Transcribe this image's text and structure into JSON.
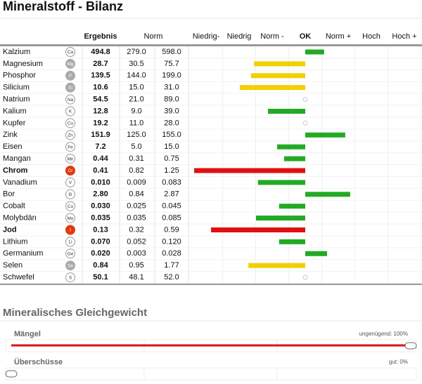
{
  "header": {
    "title": "Mineralstoff - Bilanz"
  },
  "table": {
    "columns": {
      "result": "Ergebnis",
      "norm": "Norm"
    },
    "scale": [
      "Niedrig-",
      "Niedrig",
      "Norm -",
      "OK",
      "Norm +",
      "Hoch",
      "Hoch +"
    ],
    "rows": [
      {
        "name": "Kalzium",
        "symbol": "Ca",
        "result": "494.8",
        "norm_min": "279.0",
        "norm_max": "598.0",
        "deviation": 0.57,
        "color": "#22aa22",
        "badge": "outline",
        "bold": false
      },
      {
        "name": "Magnesium",
        "symbol": "Mg",
        "result": "28.7",
        "norm_min": "30.5",
        "norm_max": "75.7",
        "deviation": -1.55,
        "color": "#f0d000",
        "badge": "gray",
        "bold": false
      },
      {
        "name": "Phosphor",
        "symbol": "P",
        "result": "139.5",
        "norm_min": "144.0",
        "norm_max": "199.0",
        "deviation": -1.64,
        "color": "#f0d000",
        "badge": "gray",
        "bold": false
      },
      {
        "name": "Silicium",
        "symbol": "Si",
        "result": "10.6",
        "norm_min": "15.0",
        "norm_max": "31.0",
        "deviation": -1.98,
        "color": "#f0d000",
        "badge": "gray",
        "bold": false
      },
      {
        "name": "Natrium",
        "symbol": "Na",
        "result": "54.5",
        "norm_min": "21.0",
        "norm_max": "89.0",
        "deviation": 0,
        "color": "#22aa22",
        "badge": "outline",
        "bold": false
      },
      {
        "name": "Kalium",
        "symbol": "K",
        "result": "12.8",
        "norm_min": "9.0",
        "norm_max": "39.0",
        "deviation": -1.13,
        "color": "#22aa22",
        "badge": "outline",
        "bold": false
      },
      {
        "name": "Kupfer",
        "symbol": "Cu",
        "result": "19.2",
        "norm_min": "11.0",
        "norm_max": "28.0",
        "deviation": 0,
        "color": "#22aa22",
        "badge": "outline",
        "bold": false
      },
      {
        "name": "Zink",
        "symbol": "Zn",
        "result": "151.9",
        "norm_min": "125.0",
        "norm_max": "155.0",
        "deviation": 1.21,
        "color": "#22aa22",
        "badge": "outline",
        "bold": false
      },
      {
        "name": "Eisen",
        "symbol": "Fe",
        "result": "7.2",
        "norm_min": "5.0",
        "norm_max": "15.0",
        "deviation": -0.85,
        "color": "#22aa22",
        "badge": "outline",
        "bold": false
      },
      {
        "name": "Mangan",
        "symbol": "Mn",
        "result": "0.44",
        "norm_min": "0.31",
        "norm_max": "0.75",
        "deviation": -0.64,
        "color": "#22aa22",
        "badge": "outline",
        "bold": false
      },
      {
        "name": "Chrom",
        "symbol": "Cr",
        "result": "0.41",
        "norm_min": "0.82",
        "norm_max": "1.25",
        "deviation": -3.36,
        "color": "#e01010",
        "badge": "red",
        "bold": true
      },
      {
        "name": "Vanadium",
        "symbol": "V",
        "result": "0.010",
        "norm_min": "0.009",
        "norm_max": "0.083",
        "deviation": -1.43,
        "color": "#22aa22",
        "badge": "outline",
        "bold": false
      },
      {
        "name": "Bor",
        "symbol": "B",
        "result": "2.80",
        "norm_min": "0.84",
        "norm_max": "2.87",
        "deviation": 1.36,
        "color": "#22aa22",
        "badge": "outline",
        "bold": false
      },
      {
        "name": "Cobalt",
        "symbol": "Co",
        "result": "0.030",
        "norm_min": "0.025",
        "norm_max": "0.045",
        "deviation": -0.79,
        "color": "#22aa22",
        "badge": "outline",
        "bold": false
      },
      {
        "name": "Molybdän",
        "symbol": "Mo",
        "result": "0.035",
        "norm_min": "0.035",
        "norm_max": "0.085",
        "deviation": -1.49,
        "color": "#22aa22",
        "badge": "outline",
        "bold": false
      },
      {
        "name": "Jod",
        "symbol": "I",
        "result": "0.13",
        "norm_min": "0.32",
        "norm_max": "0.59",
        "deviation": -2.85,
        "color": "#e01010",
        "badge": "red",
        "bold": true
      },
      {
        "name": "Lithium",
        "symbol": "Li",
        "result": "0.070",
        "norm_min": "0.052",
        "norm_max": "0.120",
        "deviation": -0.79,
        "color": "#22aa22",
        "badge": "outline",
        "bold": false
      },
      {
        "name": "Germanium",
        "symbol": "Ge",
        "result": "0.020",
        "norm_min": "0.003",
        "norm_max": "0.028",
        "deviation": 0.66,
        "color": "#22aa22",
        "badge": "outline",
        "bold": false
      },
      {
        "name": "Selen",
        "symbol": "Se",
        "result": "0.84",
        "norm_min": "0.95",
        "norm_max": "1.77",
        "deviation": -1.72,
        "color": "#f0d000",
        "badge": "gray",
        "bold": false
      },
      {
        "name": "Schwefel",
        "symbol": "S",
        "result": "50.1",
        "norm_min": "48.1",
        "norm_max": "52.0",
        "deviation": 0,
        "color": "#22aa22",
        "badge": "outline",
        "bold": false
      }
    ]
  },
  "balance": {
    "title": "Mineralisches Gleichgewicht",
    "items": [
      {
        "name": "Mängel",
        "status": "ungenügend: 100%",
        "percent": 100,
        "color": "#dd1111"
      },
      {
        "name": "Überschüsse",
        "status": "gut: 0%",
        "percent": 0,
        "color": "#dd1111"
      }
    ]
  }
}
